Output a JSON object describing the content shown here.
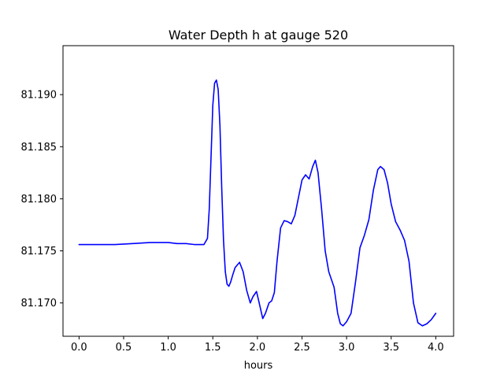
{
  "chart_data": {
    "type": "line",
    "title": "Water Depth h at gauge 520",
    "xlabel": "hours",
    "ylabel": "",
    "xlim": [
      -0.18,
      4.2
    ],
    "ylim": [
      81.1668,
      81.1947
    ],
    "xticks": [
      0.0,
      0.5,
      1.0,
      1.5,
      2.0,
      2.5,
      3.0,
      3.5,
      4.0
    ],
    "xtick_labels": [
      "0.0",
      "0.5",
      "1.0",
      "1.5",
      "2.0",
      "2.5",
      "3.0",
      "3.5",
      "4.0"
    ],
    "yticks": [
      81.17,
      81.175,
      81.18,
      81.185,
      81.19
    ],
    "ytick_labels": [
      "81.170",
      "81.175",
      "81.180",
      "81.185",
      "81.190"
    ],
    "grid": false,
    "series": [
      {
        "color": "#0000ff",
        "x": [
          0.0,
          0.2,
          0.4,
          0.6,
          0.8,
          1.0,
          1.1,
          1.2,
          1.3,
          1.4,
          1.44,
          1.46,
          1.48,
          1.5,
          1.52,
          1.54,
          1.56,
          1.58,
          1.6,
          1.62,
          1.64,
          1.66,
          1.68,
          1.7,
          1.72,
          1.75,
          1.8,
          1.84,
          1.88,
          1.92,
          1.95,
          1.99,
          2.02,
          2.06,
          2.09,
          2.13,
          2.16,
          2.19,
          2.22,
          2.26,
          2.3,
          2.34,
          2.38,
          2.42,
          2.46,
          2.5,
          2.54,
          2.58,
          2.62,
          2.65,
          2.68,
          2.72,
          2.76,
          2.8,
          2.86,
          2.9,
          2.93,
          2.96,
          3.0,
          3.05,
          3.1,
          3.15,
          3.2,
          3.25,
          3.3,
          3.35,
          3.38,
          3.42,
          3.46,
          3.5,
          3.55,
          3.6,
          3.65,
          3.7,
          3.75,
          3.8,
          3.85,
          3.9,
          3.95,
          4.0
        ],
        "y": [
          81.1756,
          81.1756,
          81.1756,
          81.1757,
          81.1758,
          81.1758,
          81.1757,
          81.1757,
          81.1756,
          81.1756,
          81.1762,
          81.179,
          81.184,
          81.189,
          81.1911,
          81.1914,
          81.1905,
          81.187,
          81.181,
          81.176,
          81.173,
          81.1718,
          81.1716,
          81.172,
          81.1726,
          81.1734,
          81.1739,
          81.173,
          81.1712,
          81.17,
          81.1706,
          81.1711,
          81.17,
          81.1685,
          81.169,
          81.17,
          81.1702,
          81.171,
          81.174,
          81.1772,
          81.1779,
          81.1778,
          81.1776,
          81.1784,
          81.1801,
          81.1818,
          81.1823,
          81.1819,
          81.1831,
          81.1837,
          81.1825,
          81.179,
          81.175,
          81.173,
          81.1715,
          81.169,
          81.168,
          81.1678,
          81.1682,
          81.169,
          81.172,
          81.1753,
          81.1765,
          81.178,
          81.1808,
          81.1828,
          81.1831,
          81.1828,
          81.1815,
          81.1795,
          81.1778,
          81.177,
          81.176,
          81.174,
          81.17,
          81.1681,
          81.1678,
          81.168,
          81.1684,
          81.169
        ]
      }
    ]
  }
}
